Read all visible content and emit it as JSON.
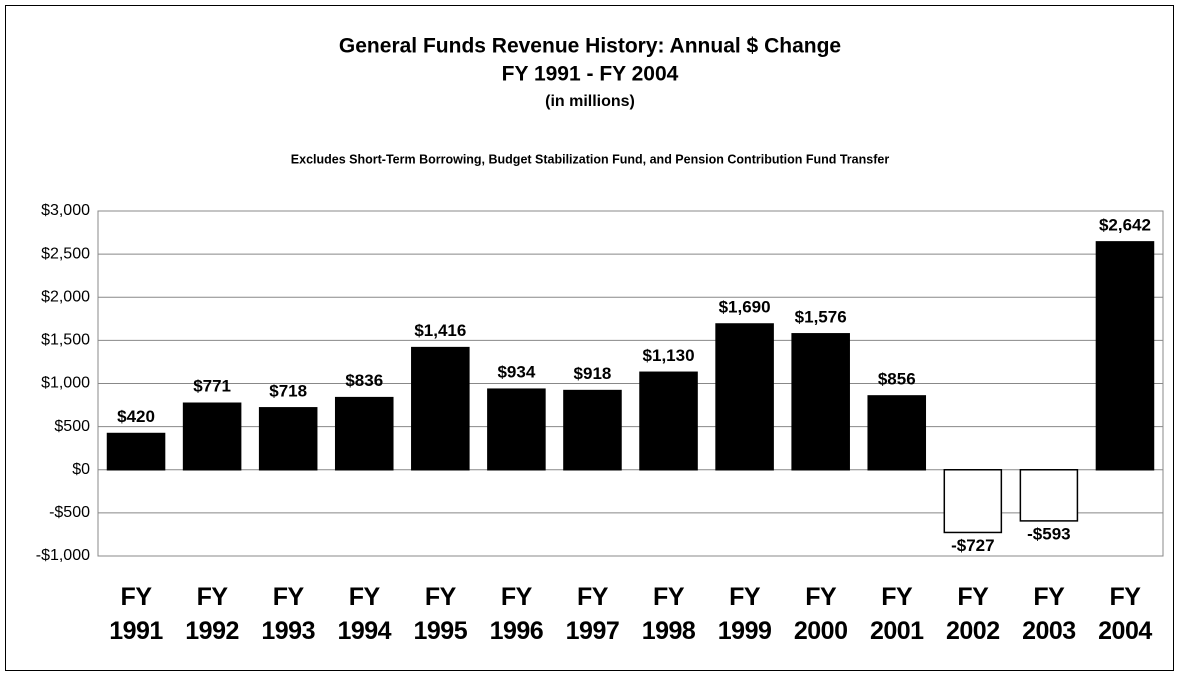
{
  "chart_data": {
    "type": "bar",
    "title": "General Funds Revenue History: Annual $ Change",
    "subtitle": "FY 1991 - FY 2004",
    "unit_note": "(in millions)",
    "annotation": "Excludes Short-Term Borrowing, Budget Stabilization Fund, and Pension Contribution Fund Transfer",
    "categories": [
      "FY 1991",
      "FY 1992",
      "FY 1993",
      "FY 1994",
      "FY 1995",
      "FY 1996",
      "FY 1997",
      "FY 1998",
      "FY 1999",
      "FY 2000",
      "FY 2001",
      "FY 2002",
      "FY 2003",
      "FY 2004"
    ],
    "values": [
      420,
      771,
      718,
      836,
      1416,
      934,
      918,
      1130,
      1690,
      1576,
      856,
      -727,
      -593,
      2642
    ],
    "value_labels": [
      "$420",
      "$771",
      "$718",
      "$836",
      "$1,416",
      "$934",
      "$918",
      "$1,130",
      "$1,690",
      "$1,576",
      "$856",
      "-$727",
      "-$593",
      "$2,642"
    ],
    "color": "#000000",
    "negative_color": "#ffffff",
    "ylim": [
      -1000,
      3000
    ],
    "yticks": [
      {
        "value": -1000,
        "label": "-$1,000"
      },
      {
        "value": -500,
        "label": "-$500"
      },
      {
        "value": 0,
        "label": "$0"
      },
      {
        "value": 500,
        "label": "$500"
      },
      {
        "value": 1000,
        "label": "$1,000"
      },
      {
        "value": 1500,
        "label": "$1,500"
      },
      {
        "value": 2000,
        "label": "$2,000"
      },
      {
        "value": 2500,
        "label": "$2,500"
      },
      {
        "value": 3000,
        "label": "$3,000"
      }
    ],
    "grid": true
  }
}
